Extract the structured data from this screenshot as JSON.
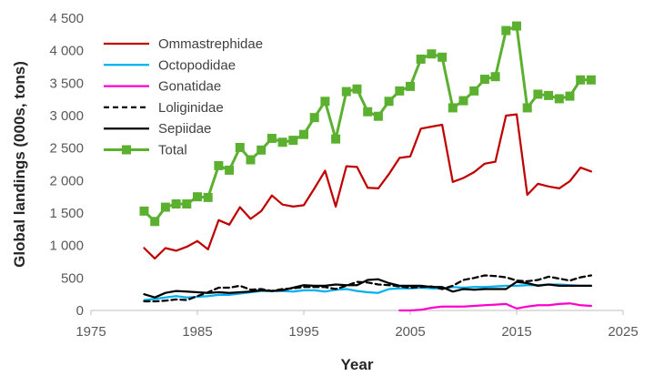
{
  "chart_data": {
    "type": "line",
    "xlabel": "Year",
    "ylabel": "Global landings (000s, tons)",
    "xlim": [
      1975,
      2025
    ],
    "ylim": [
      0,
      4500
    ],
    "x_ticks": [
      1975,
      1985,
      1995,
      2005,
      2015,
      2025
    ],
    "x_tick_labels": [
      "1975",
      "1985",
      "1995",
      "2005",
      "2015",
      "2025"
    ],
    "y_ticks": [
      0,
      500,
      1000,
      1500,
      2000,
      2500,
      3000,
      3500,
      4000,
      4500
    ],
    "y_tick_labels": [
      "0",
      "500",
      "1 000",
      "1 500",
      "2 000",
      "2 500",
      "3 000",
      "3 500",
      "4 000",
      "4 500"
    ],
    "grid": false,
    "legend_position": "top-left",
    "series": [
      {
        "name": "Ommastrephidae",
        "color": "#c00000",
        "dash": "solid",
        "marker": "none",
        "x": [
          1980,
          1981,
          1982,
          1983,
          1984,
          1985,
          1986,
          1987,
          1988,
          1989,
          1990,
          1991,
          1992,
          1993,
          1994,
          1995,
          1996,
          1997,
          1998,
          1999,
          2000,
          2001,
          2002,
          2003,
          2004,
          2005,
          2006,
          2007,
          2008,
          2009,
          2010,
          2011,
          2012,
          2013,
          2014,
          2015,
          2016,
          2017,
          2018,
          2019,
          2020,
          2021,
          2022
        ],
        "values": [
          960,
          800,
          960,
          920,
          980,
          1070,
          940,
          1390,
          1320,
          1590,
          1410,
          1530,
          1770,
          1630,
          1600,
          1620,
          1880,
          2150,
          1600,
          2220,
          2210,
          1890,
          1880,
          2100,
          2350,
          2370,
          2800,
          2830,
          2860,
          1980,
          2040,
          2130,
          2260,
          2290,
          3000,
          3020,
          1780,
          1950,
          1910,
          1880,
          1990,
          2200,
          2140
        ]
      },
      {
        "name": "Octopodidae",
        "color": "#00b0f0",
        "dash": "solid",
        "marker": "none",
        "x": [
          1980,
          1981,
          1982,
          1983,
          1984,
          1985,
          1986,
          1987,
          1988,
          1989,
          1990,
          1991,
          1992,
          1993,
          1994,
          1995,
          1996,
          1997,
          1998,
          1999,
          2000,
          2001,
          2002,
          2003,
          2004,
          2005,
          2006,
          2007,
          2008,
          2009,
          2010,
          2011,
          2012,
          2013,
          2014,
          2015,
          2016,
          2017,
          2018,
          2019,
          2020,
          2021,
          2022
        ],
        "values": [
          160,
          180,
          200,
          220,
          200,
          210,
          220,
          240,
          240,
          260,
          280,
          300,
          300,
          300,
          290,
          310,
          310,
          290,
          320,
          330,
          300,
          280,
          270,
          330,
          340,
          340,
          350,
          340,
          340,
          360,
          350,
          360,
          360,
          370,
          380,
          380,
          390,
          390,
          400,
          400,
          390,
          380,
          380
        ]
      },
      {
        "name": "Gonatidae",
        "color": "#ff00cc",
        "dash": "solid",
        "marker": "none",
        "x": [
          2004,
          2005,
          2006,
          2007,
          2008,
          2009,
          2010,
          2011,
          2012,
          2013,
          2014,
          2015,
          2016,
          2017,
          2018,
          2019,
          2020,
          2021,
          2022
        ],
        "values": [
          0,
          0,
          10,
          40,
          60,
          60,
          60,
          70,
          80,
          90,
          100,
          30,
          60,
          80,
          80,
          100,
          110,
          80,
          70
        ]
      },
      {
        "name": "Loliginidae",
        "color": "#000000",
        "dash": "dashed",
        "marker": "none",
        "x": [
          1980,
          1981,
          1982,
          1983,
          1984,
          1985,
          1986,
          1987,
          1988,
          1989,
          1990,
          1991,
          1992,
          1993,
          1994,
          1995,
          1996,
          1997,
          1998,
          1999,
          2000,
          2001,
          2002,
          2003,
          2004,
          2005,
          2006,
          2007,
          2008,
          2009,
          2010,
          2011,
          2012,
          2013,
          2014,
          2015,
          2016,
          2017,
          2018,
          2019,
          2020,
          2021,
          2022
        ],
        "values": [
          140,
          140,
          150,
          170,
          160,
          220,
          280,
          350,
          350,
          380,
          320,
          330,
          300,
          330,
          340,
          360,
          360,
          360,
          330,
          380,
          440,
          430,
          400,
          390,
          370,
          350,
          360,
          370,
          330,
          380,
          470,
          500,
          540,
          530,
          510,
          460,
          450,
          470,
          520,
          490,
          460,
          510,
          540
        ]
      },
      {
        "name": "Sepiidae",
        "color": "#000000",
        "dash": "solid",
        "marker": "none",
        "x": [
          1980,
          1981,
          1982,
          1983,
          1984,
          1985,
          1986,
          1987,
          1988,
          1989,
          1990,
          1991,
          1992,
          1993,
          1994,
          1995,
          1996,
          1997,
          1998,
          1999,
          2000,
          2001,
          2002,
          2003,
          2004,
          2005,
          2006,
          2007,
          2008,
          2009,
          2010,
          2011,
          2012,
          2013,
          2014,
          2015,
          2016,
          2017,
          2018,
          2019,
          2020,
          2021,
          2022
        ],
        "values": [
          250,
          200,
          270,
          300,
          290,
          280,
          270,
          280,
          270,
          280,
          290,
          310,
          300,
          310,
          350,
          390,
          380,
          380,
          400,
          390,
          390,
          470,
          480,
          420,
          380,
          380,
          380,
          360,
          360,
          290,
          330,
          320,
          330,
          330,
          330,
          440,
          420,
          380,
          400,
          380,
          380,
          380,
          380
        ]
      },
      {
        "name": "Total",
        "color": "#5cb030",
        "dash": "solid",
        "marker": "square",
        "x": [
          1980,
          1981,
          1982,
          1983,
          1984,
          1985,
          1986,
          1987,
          1988,
          1989,
          1990,
          1991,
          1992,
          1993,
          1994,
          1995,
          1996,
          1997,
          1998,
          1999,
          2000,
          2001,
          2002,
          2003,
          2004,
          2005,
          2006,
          2007,
          2008,
          2009,
          2010,
          2011,
          2012,
          2013,
          2014,
          2015,
          2016,
          2017,
          2018,
          2019,
          2020,
          2021,
          2022
        ],
        "values": [
          1530,
          1370,
          1590,
          1640,
          1640,
          1750,
          1740,
          2230,
          2160,
          2510,
          2320,
          2470,
          2650,
          2590,
          2620,
          2710,
          2970,
          3220,
          2640,
          3370,
          3410,
          3060,
          2990,
          3220,
          3380,
          3450,
          3870,
          3950,
          3900,
          3120,
          3230,
          3380,
          3560,
          3600,
          4310,
          4380,
          3120,
          3330,
          3310,
          3260,
          3300,
          3550,
          3550
        ]
      }
    ]
  }
}
